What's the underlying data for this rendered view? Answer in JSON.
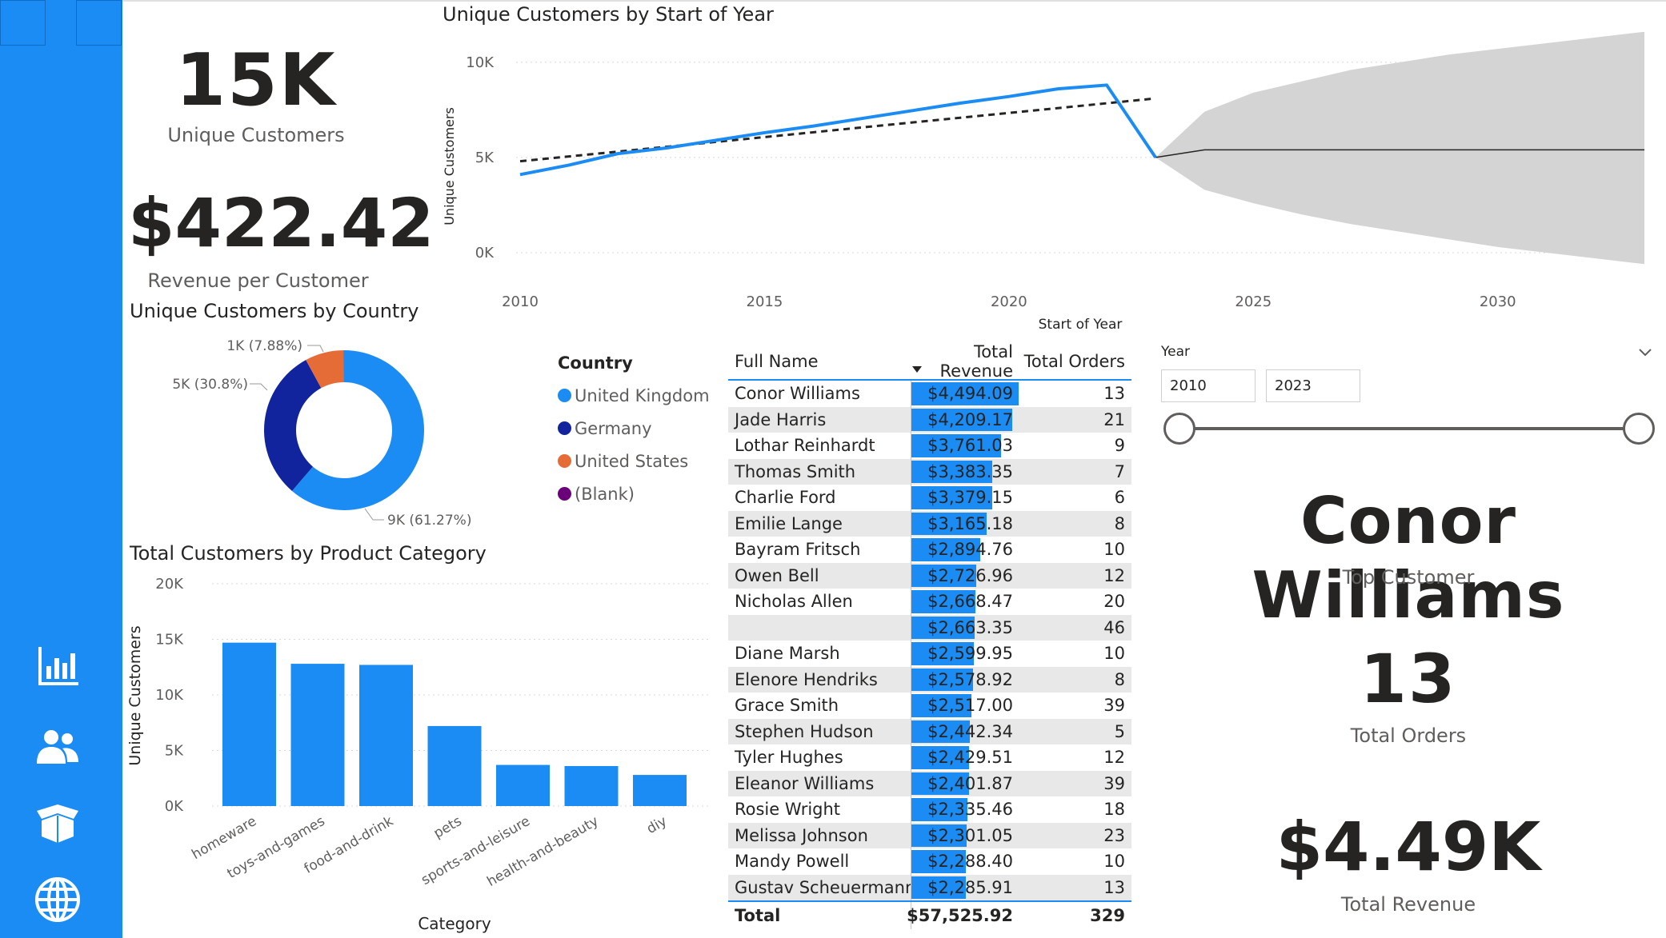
{
  "kpis": {
    "unique_customers": {
      "value": "15K",
      "label": "Unique Customers"
    },
    "revenue_per_customer": {
      "value": "$422.42",
      "label": "Revenue per Customer"
    },
    "top_customer": {
      "value": "Conor Williams",
      "label": "Top Customer"
    },
    "total_orders": {
      "value": "13",
      "label": "Total Orders"
    },
    "total_revenue": {
      "value": "$4.49K",
      "label": "Total Revenue"
    }
  },
  "sidebar": {
    "icons": [
      "bar-chart-icon",
      "users-icon",
      "box-icon",
      "globe-icon"
    ]
  },
  "line_chart": {
    "title": "Unique Customers by Start of Year",
    "xlabel": "Start of Year",
    "ylabel": "Unique Customers",
    "y_ticks": [
      "10K",
      "5K",
      "0K"
    ],
    "x_ticks": [
      "2010",
      "2015",
      "2020",
      "2025",
      "2030"
    ]
  },
  "donut": {
    "title": "Unique Customers by Country",
    "labels": [
      "1K (7.88%)",
      "5K (30.8%)",
      "9K (61.27%)"
    ]
  },
  "legend": {
    "title": "Country",
    "items": [
      {
        "label": "United Kingdom",
        "color": "#1a8cf4"
      },
      {
        "label": "Germany",
        "color": "#12239e"
      },
      {
        "label": "United States",
        "color": "#e66c37"
      },
      {
        "label": "(Blank)",
        "color": "#6b007b"
      }
    ]
  },
  "bar_chart": {
    "title": "Total Customers by Product Category",
    "xlabel": "Category",
    "ylabel": "Unique Customers",
    "y_ticks": [
      "20K",
      "15K",
      "10K",
      "5K",
      "0K"
    ]
  },
  "table": {
    "headers": {
      "name": "Full Name",
      "revenue": "Total Revenue",
      "orders": "Total Orders"
    },
    "rows": [
      {
        "name": "Conor Williams",
        "revenue": "$4,494.09",
        "orders": "13",
        "rev": 4494.09
      },
      {
        "name": "Jade Harris",
        "revenue": "$4,209.17",
        "orders": "21",
        "rev": 4209.17
      },
      {
        "name": "Lothar Reinhardt",
        "revenue": "$3,761.03",
        "orders": "9",
        "rev": 3761.03
      },
      {
        "name": "Thomas Smith",
        "revenue": "$3,383.35",
        "orders": "7",
        "rev": 3383.35
      },
      {
        "name": "Charlie Ford",
        "revenue": "$3,379.15",
        "orders": "6",
        "rev": 3379.15
      },
      {
        "name": "Emilie Lange",
        "revenue": "$3,165.18",
        "orders": "8",
        "rev": 3165.18
      },
      {
        "name": "Bayram Fritsch",
        "revenue": "$2,894.76",
        "orders": "10",
        "rev": 2894.76
      },
      {
        "name": "Owen Bell",
        "revenue": "$2,726.96",
        "orders": "12",
        "rev": 2726.96
      },
      {
        "name": "Nicholas Allen",
        "revenue": "$2,668.47",
        "orders": "20",
        "rev": 2668.47
      },
      {
        "name": "",
        "revenue": "$2,663.35",
        "orders": "46",
        "rev": 2663.35
      },
      {
        "name": "Diane Marsh",
        "revenue": "$2,599.95",
        "orders": "10",
        "rev": 2599.95
      },
      {
        "name": "Elenore Hendriks",
        "revenue": "$2,578.92",
        "orders": "8",
        "rev": 2578.92
      },
      {
        "name": "Grace Smith",
        "revenue": "$2,517.00",
        "orders": "39",
        "rev": 2517.0
      },
      {
        "name": "Stephen Hudson",
        "revenue": "$2,442.34",
        "orders": "5",
        "rev": 2442.34
      },
      {
        "name": "Tyler Hughes",
        "revenue": "$2,429.51",
        "orders": "12",
        "rev": 2429.51
      },
      {
        "name": "Eleanor Williams",
        "revenue": "$2,401.87",
        "orders": "39",
        "rev": 2401.87
      },
      {
        "name": "Rosie Wright",
        "revenue": "$2,335.46",
        "orders": "18",
        "rev": 2335.46
      },
      {
        "name": "Melissa Johnson",
        "revenue": "$2,301.05",
        "orders": "23",
        "rev": 2301.05
      },
      {
        "name": "Mandy Powell",
        "revenue": "$2,288.40",
        "orders": "10",
        "rev": 2288.4
      },
      {
        "name": "Gustav Scheuermann",
        "revenue": "$2,285.91",
        "orders": "13",
        "rev": 2285.91
      }
    ],
    "total": {
      "label": "Total",
      "revenue": "$57,525.92",
      "orders": "329"
    }
  },
  "slicer": {
    "title": "Year",
    "start": "2010",
    "end": "2023"
  },
  "chart_data": [
    {
      "type": "line",
      "title": "Unique Customers by Start of Year",
      "xlabel": "Start of Year",
      "ylabel": "Unique Customers",
      "x": [
        2010,
        2011,
        2012,
        2013,
        2014,
        2015,
        2016,
        2017,
        2018,
        2019,
        2020,
        2021,
        2022,
        2023
      ],
      "series": [
        {
          "values": [
            4100,
            4600,
            5200,
            5500,
            5900,
            6300,
            6650,
            7050,
            7450,
            7850,
            8200,
            8600,
            8800,
            5000
          ]
        }
      ],
      "trend": {
        "x": [
          2010,
          2023
        ],
        "values": [
          4800,
          8100
        ]
      },
      "forecast": {
        "x": [
          2023,
          2024,
          2025,
          2026,
          2027,
          2028,
          2029,
          2030,
          2031,
          2032,
          2033
        ],
        "values": [
          5000,
          5400,
          5400,
          5400,
          5400,
          5400,
          5400,
          5400,
          5400,
          5400,
          5400
        ],
        "upper": [
          5000,
          7400,
          8400,
          9000,
          9600,
          10000,
          10400,
          10700,
          11000,
          11300,
          11600
        ],
        "lower": [
          5000,
          3300,
          2600,
          2000,
          1500,
          1100,
          700,
          300,
          0,
          -300,
          -600
        ]
      },
      "ylim": [
        0,
        11000
      ],
      "xlim": [
        2010,
        2033
      ],
      "grid": true
    },
    {
      "type": "pie",
      "title": "Unique Customers by Country",
      "categories": [
        "United Kingdom",
        "Germany",
        "United States",
        "(Blank)"
      ],
      "values": [
        61.27,
        30.8,
        7.88,
        0.05
      ],
      "colors": [
        "#1a8cf4",
        "#12239e",
        "#e66c37",
        "#6b007b"
      ],
      "legend": "right"
    },
    {
      "type": "bar",
      "title": "Total Customers by Product Category",
      "xlabel": "Category",
      "ylabel": "Unique Customers",
      "categories": [
        "homeware",
        "toys-and-games",
        "food-and-drink",
        "pets",
        "sports-and-leisure",
        "health-and-beauty",
        "diy"
      ],
      "values": [
        14700,
        12800,
        12700,
        7200,
        3700,
        3600,
        2800
      ],
      "ylim": [
        0,
        20000
      ],
      "grid": true
    }
  ]
}
